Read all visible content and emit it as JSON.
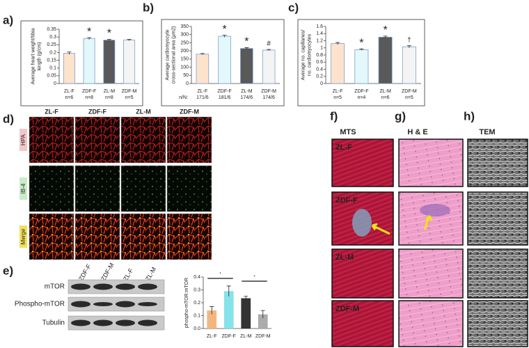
{
  "panel_labels": [
    "a)",
    "b)",
    "c)",
    "d)",
    "e)",
    "f)",
    "g)",
    "h)"
  ],
  "staining_columns": [
    "ZL-F",
    "ZDF-F",
    "ZL-M",
    "ZDF-M"
  ],
  "staining_rows": [
    "HPA",
    "IB-4",
    "Merge"
  ],
  "blot_lanes": [
    "ZDF-F",
    "ZDF-M",
    "ZL-F",
    "ZL-M"
  ],
  "blot_rows": [
    "mTOR",
    "Phospho-mTOR",
    "Tubulin"
  ],
  "histology_methods": [
    "MTS",
    "H & E",
    "TEM"
  ],
  "histology_groups": [
    "ZL-F",
    "ZDF-F",
    "ZL-M",
    "ZDF-M"
  ],
  "chart_data": [
    {
      "type": "bar",
      "ylabel": [
        "Average heart weight/tibia",
        "length (g/cm)"
      ],
      "categories": [
        "ZL-F",
        "ZDF-F",
        "ZL-M",
        "ZDF-M"
      ],
      "category_notes": [
        "n=6",
        "n=8",
        "n=8",
        "n=5"
      ],
      "values": [
        0.195,
        0.29,
        0.28,
        0.28
      ],
      "errors": [
        0.008,
        0.006,
        0.005,
        0.004
      ],
      "annotations": [
        null,
        "*",
        "*",
        null
      ],
      "colors": [
        "#fde3cc",
        "#e3f8fb",
        "#595959",
        "#f4f4f4"
      ],
      "ylim": [
        0,
        0.35
      ],
      "yticks": [
        0,
        0.05,
        0.1,
        0.15,
        0.2,
        0.25,
        0.3,
        0.35
      ]
    },
    {
      "type": "bar",
      "ylabel": [
        "Average cardiomyocyte",
        "cross-sectional area (µm2)"
      ],
      "categories": [
        "ZL-F",
        "ZDF-F",
        "ZL-M",
        "ZDF-M"
      ],
      "count_prefix": "n/N:",
      "category_notes": [
        "171/6",
        "181/6",
        "174/6",
        "174/6"
      ],
      "values": [
        180,
        290,
        215,
        205
      ],
      "errors": [
        4,
        6,
        5,
        4
      ],
      "annotations": [
        null,
        "*",
        "*",
        "#"
      ],
      "colors": [
        "#fde3cc",
        "#e3f8fb",
        "#595959",
        "#f4f4f4"
      ],
      "ylim": [
        0,
        350
      ],
      "yticks": [
        0,
        50,
        100,
        150,
        200,
        250,
        300,
        350
      ]
    },
    {
      "type": "bar",
      "ylabel": [
        "Average no. capillaries/",
        "no. cardiomyocytes"
      ],
      "categories": [
        "ZL-F",
        "ZDF-F",
        "ZL-M",
        "ZDF-M"
      ],
      "category_notes": [
        "n=5",
        "n=4",
        "n=6",
        "n=5"
      ],
      "values": [
        1.12,
        0.95,
        1.3,
        1.03
      ],
      "errors": [
        0.03,
        0.02,
        0.03,
        0.03
      ],
      "annotations": [
        null,
        "*",
        "*",
        "†"
      ],
      "colors": [
        "#fde3cc",
        "#e3f8fb",
        "#595959",
        "#f4f4f4"
      ],
      "ylim": [
        0,
        1.6
      ],
      "yticks": [
        0,
        0.2,
        0.4,
        0.6,
        0.8,
        1,
        1.2,
        1.4,
        1.6
      ]
    },
    {
      "type": "bar",
      "ylabel": [
        "phospho-mTOR:mTOR"
      ],
      "categories": [
        "ZL-F",
        "ZDF-F",
        "ZL-M",
        "ZDF-M"
      ],
      "values": [
        0.14,
        0.29,
        0.235,
        0.11
      ],
      "errors": [
        0.03,
        0.04,
        0.015,
        0.03
      ],
      "colors": [
        "#f2b67e",
        "#86e3ea",
        "#333333",
        "#ababab"
      ],
      "significance": [
        "*",
        "*"
      ],
      "ylim": [
        0,
        0.4
      ],
      "yticks": [
        {
          "value": 0,
          "label": "0.0"
        },
        {
          "value": 0.1,
          "label": "0.1"
        },
        {
          "value": 0.2,
          "label": "0.2"
        },
        {
          "value": 0.3,
          "label": "0.3"
        },
        {
          "value": 0.4,
          "label": "0.4"
        }
      ]
    }
  ]
}
